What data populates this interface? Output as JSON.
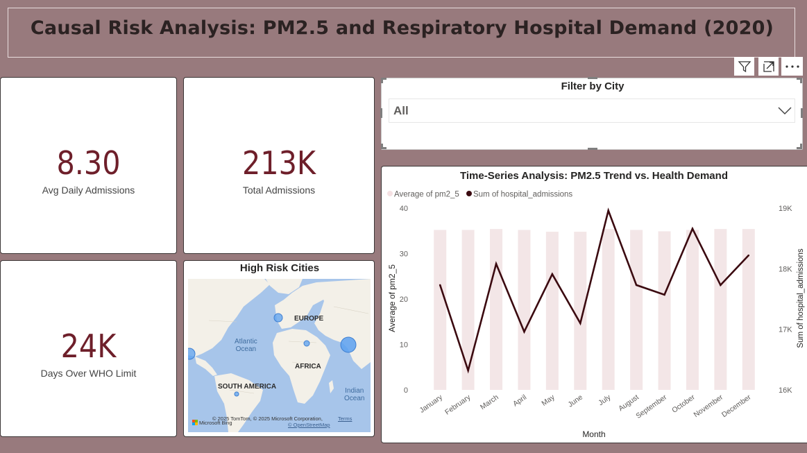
{
  "report": {
    "title": "Causal Risk Analysis: PM2.5 and Respiratory Hospital Demand (2020)"
  },
  "kpis": {
    "avg_daily_admissions": {
      "value": "8.30",
      "label": "Avg Daily Admissions"
    },
    "total_admissions": {
      "value": "213K",
      "label": "Total Admissions"
    },
    "days_over_who": {
      "value": "24K",
      "label": "Days Over WHO Limit"
    }
  },
  "slicer": {
    "title": "Filter by City",
    "selected": "All"
  },
  "map": {
    "title": "High Risk Cities",
    "labels": {
      "europe": "EUROPE",
      "atlantic_1": "Atlantic",
      "atlantic_2": "Ocean",
      "africa": "AFRICA",
      "south_america": "SOUTH AMERICA",
      "indian_1": "Indian",
      "indian_2": "Ocean"
    },
    "attribution": {
      "bing": "Microsoft Bing",
      "copyright": "© 2025 TomTom, © 2025 Microsoft Corporation,",
      "terms": "Terms",
      "osm": "© OpenStreetMap"
    }
  },
  "colors": {
    "background": "#987A7D",
    "kpi": "#6E1F2A",
    "bar": "#F3E6E7",
    "line": "#3B0A10",
    "legend_bar": "#F5E1E3"
  },
  "chart_data": {
    "type": "bar",
    "title": "Time-Series Analysis: PM2.5 Trend vs. Health Demand",
    "xlabel": "Month",
    "ylabel": "Average of pm2_5",
    "y2label": "Sum of hospital_admissions",
    "legend_position": "top-left",
    "grid": false,
    "categories": [
      "January",
      "February",
      "March",
      "April",
      "May",
      "June",
      "July",
      "August",
      "September",
      "October",
      "November",
      "December"
    ],
    "ylim": [
      0,
      40
    ],
    "yticks": [
      "0",
      "10",
      "20",
      "30",
      "40"
    ],
    "y2lim": [
      16000,
      19000
    ],
    "y2ticks": [
      "16K",
      "17K",
      "18K",
      "19K"
    ],
    "series": [
      {
        "name": "Average of pm2_5",
        "type": "bar",
        "axis": "left",
        "values": [
          35.2,
          35.2,
          35.4,
          35.2,
          34.8,
          34.8,
          35.4,
          35.2,
          34.9,
          35.2,
          35.4,
          35.4
        ]
      },
      {
        "name": "Sum of hospital_admissions",
        "type": "line",
        "axis": "right",
        "values": [
          17730,
          16320,
          18080,
          16960,
          17910,
          17100,
          18960,
          17730,
          17570,
          18660,
          17730,
          18220
        ]
      }
    ]
  }
}
